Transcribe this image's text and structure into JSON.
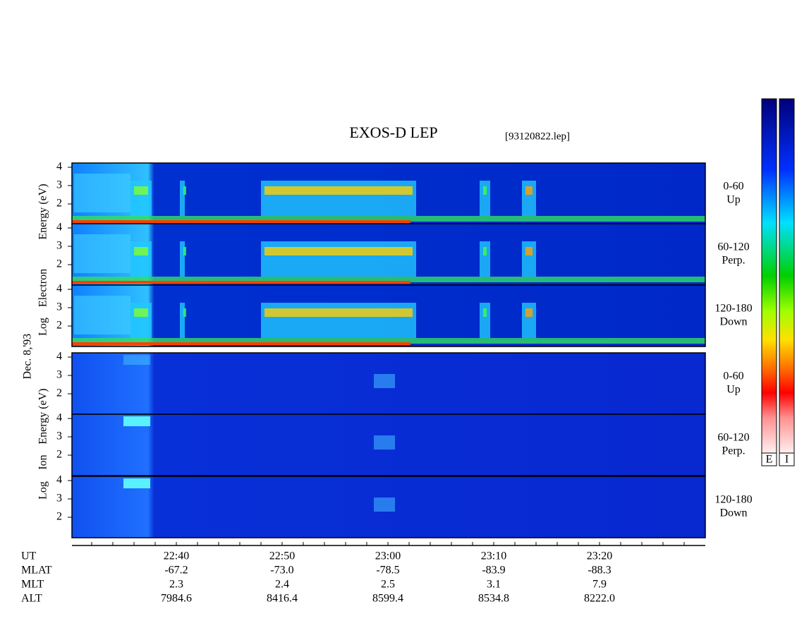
{
  "header": {
    "title": "EXOS-D LEP",
    "file": "[93120822.lep]"
  },
  "left_labels": {
    "electron": [
      "Log",
      "Electron",
      "Energy (eV)"
    ],
    "date": "Dec. 8,'93",
    "ion": [
      "Log",
      "Ion",
      "Energy (eV)"
    ]
  },
  "panels": [
    {
      "pitch": "0-60",
      "direction": "Up",
      "yticks": [
        2,
        3,
        4
      ]
    },
    {
      "pitch": "60-120",
      "direction": "Perp.",
      "yticks": [
        2,
        3,
        4
      ]
    },
    {
      "pitch": "120-180",
      "direction": "Down",
      "yticks": [
        2,
        3,
        4
      ]
    },
    {
      "pitch": "0-60",
      "direction": "Up",
      "yticks": [
        2,
        3,
        4
      ]
    },
    {
      "pitch": "60-120",
      "direction": "Perp.",
      "yticks": [
        2,
        3,
        4
      ]
    },
    {
      "pitch": "120-180",
      "direction": "Down",
      "yticks": [
        2,
        3,
        4
      ]
    }
  ],
  "orbit": {
    "row_labels": [
      "UT",
      "MLAT",
      "MLT",
      "ALT"
    ],
    "UT": [
      "22:40",
      "22:50",
      "23:00",
      "23:10",
      "23:20"
    ],
    "MLAT": [
      "-67.2",
      "-73.0",
      "-78.5",
      "-83.9",
      "-88.3"
    ],
    "MLT": [
      "2.3",
      "2.4",
      "2.5",
      "3.1",
      "7.9"
    ],
    "ALT": [
      "7984.6",
      "8416.4",
      "8599.4",
      "8534.8",
      "8222.0"
    ]
  },
  "colorbars": [
    "E",
    "I"
  ]
}
